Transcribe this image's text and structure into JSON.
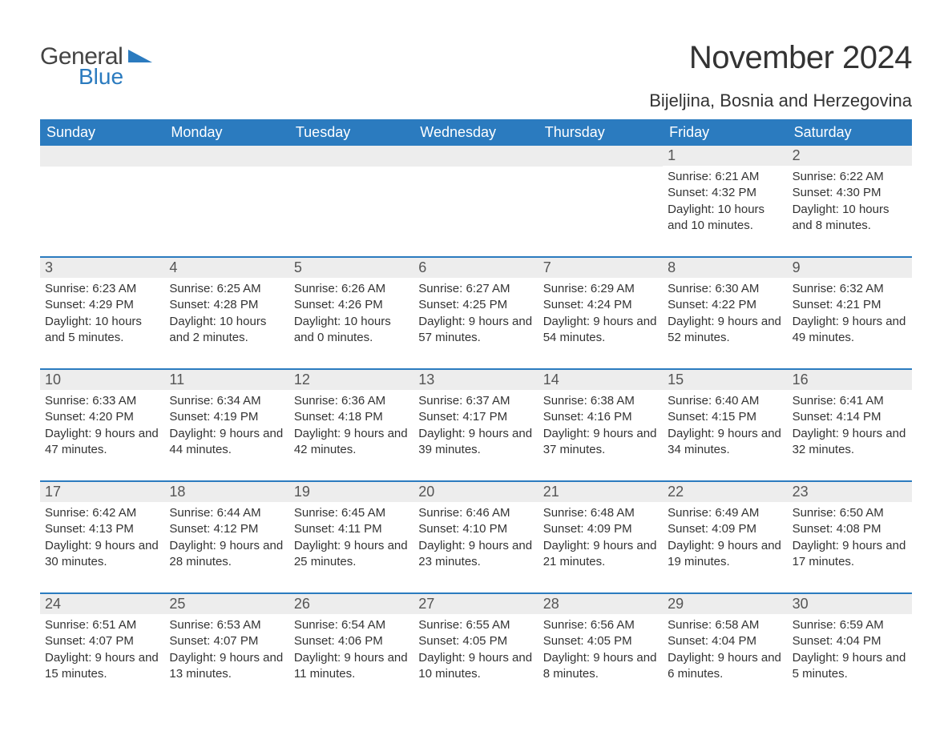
{
  "logo": {
    "general": "General",
    "blue": "Blue"
  },
  "title": "November 2024",
  "location": "Bijeljina, Bosnia and Herzegovina",
  "colors": {
    "brand_blue": "#2b7bbf",
    "header_row_bg": "#2b7bbf",
    "header_row_text": "#ffffff",
    "daynum_bg": "#ededed",
    "daynum_text": "#555555",
    "body_text": "#333333",
    "page_bg": "#ffffff"
  },
  "typography": {
    "title_fontsize": 40,
    "location_fontsize": 22,
    "dow_fontsize": 18,
    "daynum_fontsize": 18,
    "body_fontsize": 15,
    "font_family": "Arial"
  },
  "layout": {
    "columns": 7,
    "rows": 5,
    "week_divider_color": "#2b7bbf",
    "week_divider_width": 2
  },
  "days_of_week": [
    "Sunday",
    "Monday",
    "Tuesday",
    "Wednesday",
    "Thursday",
    "Friday",
    "Saturday"
  ],
  "weeks": [
    [
      null,
      null,
      null,
      null,
      null,
      {
        "n": "1",
        "sunrise": "Sunrise: 6:21 AM",
        "sunset": "Sunset: 4:32 PM",
        "daylight": "Daylight: 10 hours and 10 minutes."
      },
      {
        "n": "2",
        "sunrise": "Sunrise: 6:22 AM",
        "sunset": "Sunset: 4:30 PM",
        "daylight": "Daylight: 10 hours and 8 minutes."
      }
    ],
    [
      {
        "n": "3",
        "sunrise": "Sunrise: 6:23 AM",
        "sunset": "Sunset: 4:29 PM",
        "daylight": "Daylight: 10 hours and 5 minutes."
      },
      {
        "n": "4",
        "sunrise": "Sunrise: 6:25 AM",
        "sunset": "Sunset: 4:28 PM",
        "daylight": "Daylight: 10 hours and 2 minutes."
      },
      {
        "n": "5",
        "sunrise": "Sunrise: 6:26 AM",
        "sunset": "Sunset: 4:26 PM",
        "daylight": "Daylight: 10 hours and 0 minutes."
      },
      {
        "n": "6",
        "sunrise": "Sunrise: 6:27 AM",
        "sunset": "Sunset: 4:25 PM",
        "daylight": "Daylight: 9 hours and 57 minutes."
      },
      {
        "n": "7",
        "sunrise": "Sunrise: 6:29 AM",
        "sunset": "Sunset: 4:24 PM",
        "daylight": "Daylight: 9 hours and 54 minutes."
      },
      {
        "n": "8",
        "sunrise": "Sunrise: 6:30 AM",
        "sunset": "Sunset: 4:22 PM",
        "daylight": "Daylight: 9 hours and 52 minutes."
      },
      {
        "n": "9",
        "sunrise": "Sunrise: 6:32 AM",
        "sunset": "Sunset: 4:21 PM",
        "daylight": "Daylight: 9 hours and 49 minutes."
      }
    ],
    [
      {
        "n": "10",
        "sunrise": "Sunrise: 6:33 AM",
        "sunset": "Sunset: 4:20 PM",
        "daylight": "Daylight: 9 hours and 47 minutes."
      },
      {
        "n": "11",
        "sunrise": "Sunrise: 6:34 AM",
        "sunset": "Sunset: 4:19 PM",
        "daylight": "Daylight: 9 hours and 44 minutes."
      },
      {
        "n": "12",
        "sunrise": "Sunrise: 6:36 AM",
        "sunset": "Sunset: 4:18 PM",
        "daylight": "Daylight: 9 hours and 42 minutes."
      },
      {
        "n": "13",
        "sunrise": "Sunrise: 6:37 AM",
        "sunset": "Sunset: 4:17 PM",
        "daylight": "Daylight: 9 hours and 39 minutes."
      },
      {
        "n": "14",
        "sunrise": "Sunrise: 6:38 AM",
        "sunset": "Sunset: 4:16 PM",
        "daylight": "Daylight: 9 hours and 37 minutes."
      },
      {
        "n": "15",
        "sunrise": "Sunrise: 6:40 AM",
        "sunset": "Sunset: 4:15 PM",
        "daylight": "Daylight: 9 hours and 34 minutes."
      },
      {
        "n": "16",
        "sunrise": "Sunrise: 6:41 AM",
        "sunset": "Sunset: 4:14 PM",
        "daylight": "Daylight: 9 hours and 32 minutes."
      }
    ],
    [
      {
        "n": "17",
        "sunrise": "Sunrise: 6:42 AM",
        "sunset": "Sunset: 4:13 PM",
        "daylight": "Daylight: 9 hours and 30 minutes."
      },
      {
        "n": "18",
        "sunrise": "Sunrise: 6:44 AM",
        "sunset": "Sunset: 4:12 PM",
        "daylight": "Daylight: 9 hours and 28 minutes."
      },
      {
        "n": "19",
        "sunrise": "Sunrise: 6:45 AM",
        "sunset": "Sunset: 4:11 PM",
        "daylight": "Daylight: 9 hours and 25 minutes."
      },
      {
        "n": "20",
        "sunrise": "Sunrise: 6:46 AM",
        "sunset": "Sunset: 4:10 PM",
        "daylight": "Daylight: 9 hours and 23 minutes."
      },
      {
        "n": "21",
        "sunrise": "Sunrise: 6:48 AM",
        "sunset": "Sunset: 4:09 PM",
        "daylight": "Daylight: 9 hours and 21 minutes."
      },
      {
        "n": "22",
        "sunrise": "Sunrise: 6:49 AM",
        "sunset": "Sunset: 4:09 PM",
        "daylight": "Daylight: 9 hours and 19 minutes."
      },
      {
        "n": "23",
        "sunrise": "Sunrise: 6:50 AM",
        "sunset": "Sunset: 4:08 PM",
        "daylight": "Daylight: 9 hours and 17 minutes."
      }
    ],
    [
      {
        "n": "24",
        "sunrise": "Sunrise: 6:51 AM",
        "sunset": "Sunset: 4:07 PM",
        "daylight": "Daylight: 9 hours and 15 minutes."
      },
      {
        "n": "25",
        "sunrise": "Sunrise: 6:53 AM",
        "sunset": "Sunset: 4:07 PM",
        "daylight": "Daylight: 9 hours and 13 minutes."
      },
      {
        "n": "26",
        "sunrise": "Sunrise: 6:54 AM",
        "sunset": "Sunset: 4:06 PM",
        "daylight": "Daylight: 9 hours and 11 minutes."
      },
      {
        "n": "27",
        "sunrise": "Sunrise: 6:55 AM",
        "sunset": "Sunset: 4:05 PM",
        "daylight": "Daylight: 9 hours and 10 minutes."
      },
      {
        "n": "28",
        "sunrise": "Sunrise: 6:56 AM",
        "sunset": "Sunset: 4:05 PM",
        "daylight": "Daylight: 9 hours and 8 minutes."
      },
      {
        "n": "29",
        "sunrise": "Sunrise: 6:58 AM",
        "sunset": "Sunset: 4:04 PM",
        "daylight": "Daylight: 9 hours and 6 minutes."
      },
      {
        "n": "30",
        "sunrise": "Sunrise: 6:59 AM",
        "sunset": "Sunset: 4:04 PM",
        "daylight": "Daylight: 9 hours and 5 minutes."
      }
    ]
  ]
}
